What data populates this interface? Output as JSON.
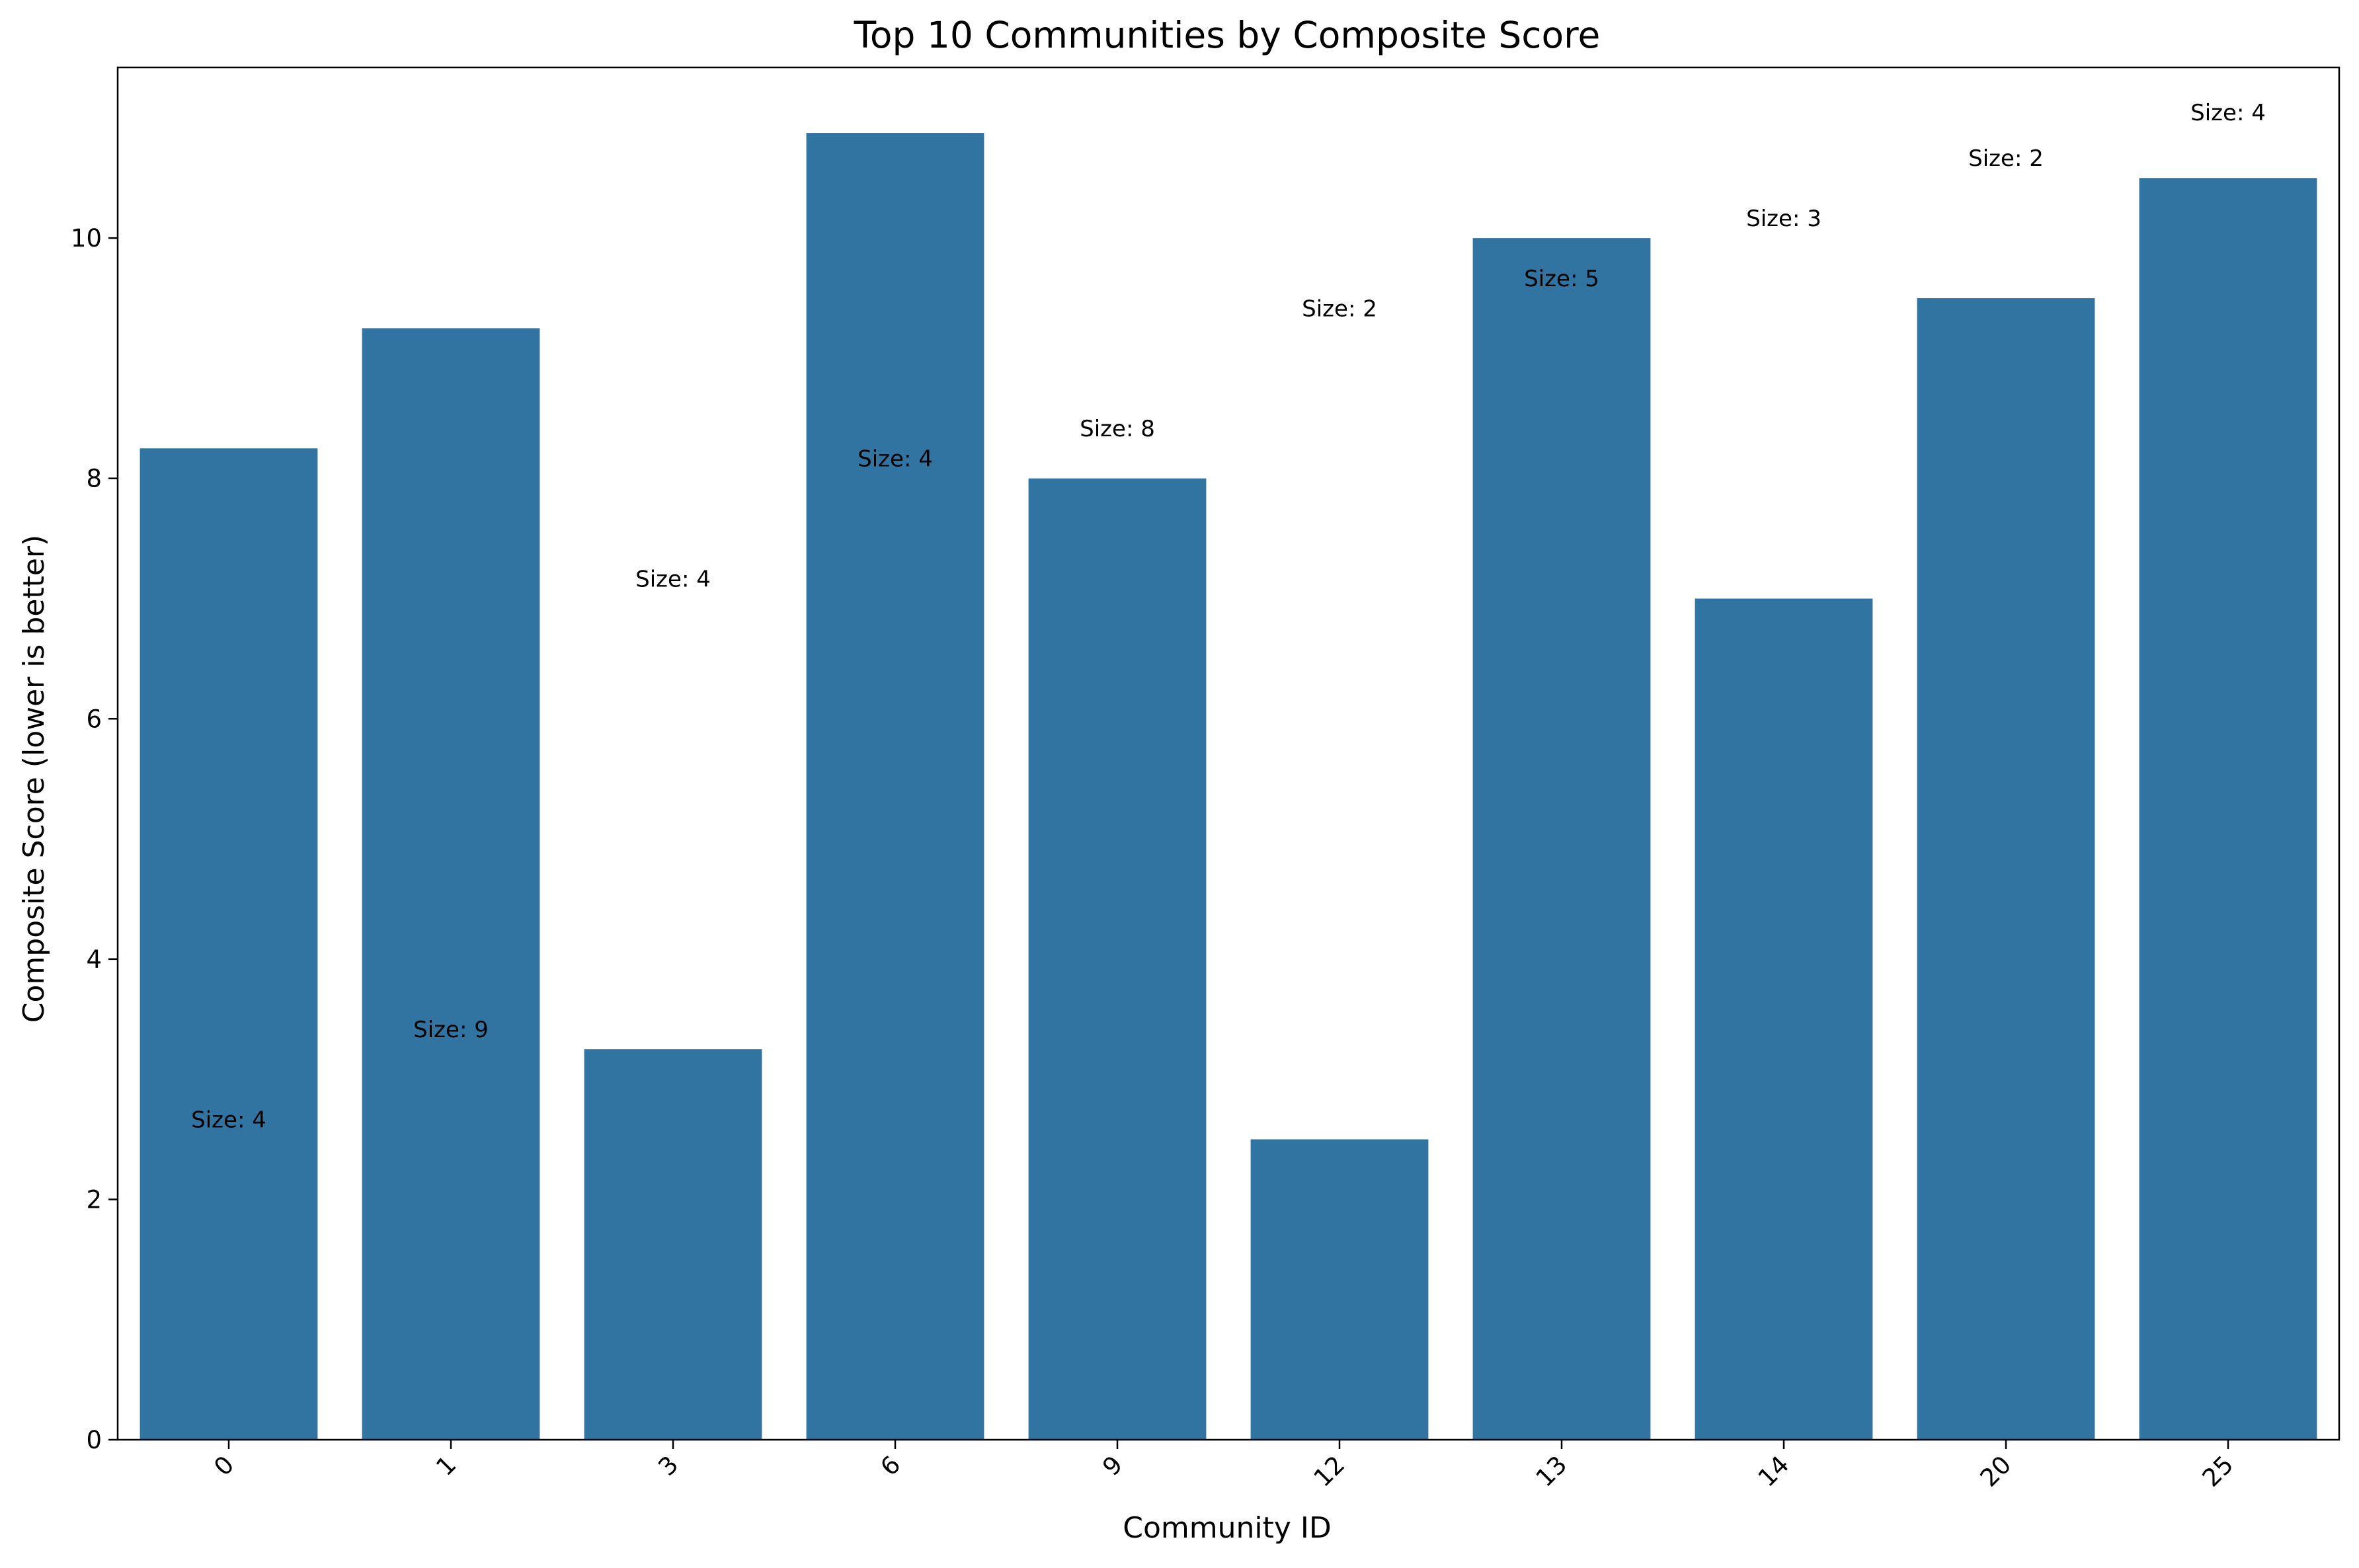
{
  "chart_data": {
    "type": "bar",
    "title": "Top 10 Communities by Composite Score",
    "xlabel": "Community ID",
    "ylabel": "Composite Score (lower is better)",
    "categories": [
      "0",
      "1",
      "3",
      "6",
      "9",
      "12",
      "13",
      "14",
      "20",
      "25"
    ],
    "values": [
      8.25,
      9.25,
      3.25,
      10.875,
      8.0,
      2.5,
      10.0,
      7.0,
      9.5,
      10.5
    ],
    "ylim": [
      0,
      11.42
    ],
    "yticks": [
      0,
      2,
      4,
      6,
      8,
      10
    ],
    "bar_color": "#3274a1",
    "grid": false,
    "legend": "none",
    "annotations": [
      {
        "text": "Size: 4",
        "x": "0",
        "y": 2.6
      },
      {
        "text": "Size: 9",
        "x": "1",
        "y": 3.35
      },
      {
        "text": "Size: 4",
        "x": "3",
        "y": 7.1
      },
      {
        "text": "Size: 4",
        "x": "6",
        "y": 8.1
      },
      {
        "text": "Size: 8",
        "x": "9",
        "y": 8.35
      },
      {
        "text": "Size: 2",
        "x": "12",
        "y": 9.35
      },
      {
        "text": "Size: 5",
        "x": "13",
        "y": 9.6
      },
      {
        "text": "Size: 3",
        "x": "14",
        "y": 10.1
      },
      {
        "text": "Size: 2",
        "x": "20",
        "y": 10.6
      },
      {
        "text": "Size: 4",
        "x": "25",
        "y": 10.98
      }
    ]
  }
}
